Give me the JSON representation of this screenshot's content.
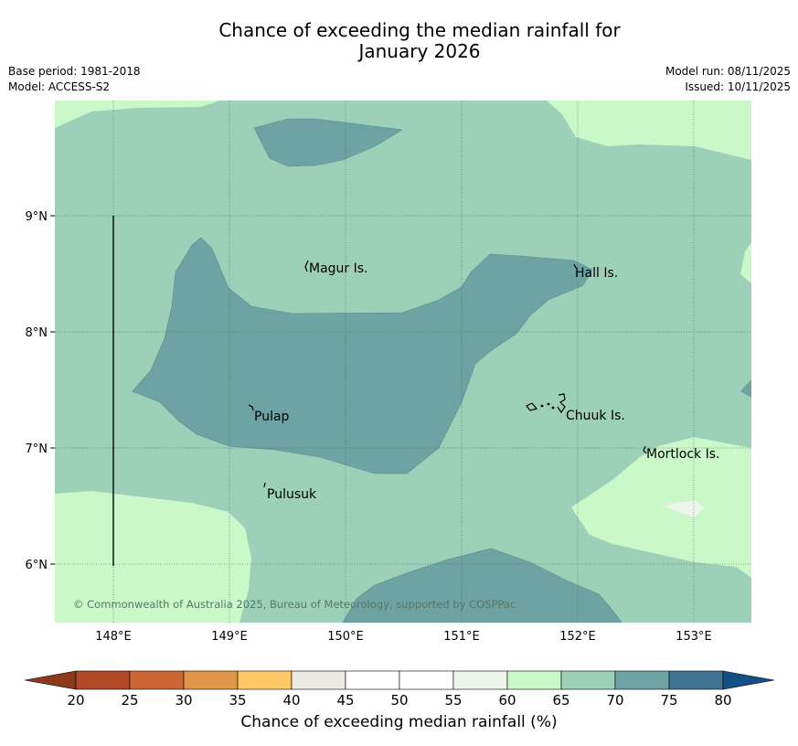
{
  "title_line1": "Chance of exceeding the median rainfall for",
  "title_line2": "January 2026",
  "meta": {
    "base_period": "Base period: 1981-2018",
    "model": "Model: ACCESS-S2",
    "model_run": "Model run: 08/11/2025",
    "issued": "Issued: 10/11/2025"
  },
  "map": {
    "lat_ticks": [
      "9°N",
      "8°N",
      "7°N",
      "6°N"
    ],
    "lon_ticks": [
      "148°E",
      "149°E",
      "150°E",
      "151°E",
      "152°E",
      "153°E"
    ],
    "places": [
      "Magur Is.",
      "Hall Is.",
      "Pulap",
      "Chuuk Is.",
      "Mortlock Is.",
      "Pulusuk"
    ],
    "copyright": "© Commonwealth of Australia 2025, Bureau of Meteorology, supported by COSPPac"
  },
  "colorbar": {
    "title": "Chance of exceeding median rainfall (%)",
    "ticks": [
      "20",
      "25",
      "30",
      "35",
      "40",
      "45",
      "50",
      "55",
      "60",
      "65",
      "70",
      "75",
      "80"
    ],
    "colors": [
      "#8b3a1f",
      "#b04a26",
      "#cc6633",
      "#e09548",
      "#fdc864",
      "#ece8e3",
      "#ffffff",
      "#ffffff",
      "#eef5ec",
      "#caf8c8",
      "#9dd0b9",
      "#6ea3a4",
      "#3e7292",
      "#144f86"
    ]
  }
}
